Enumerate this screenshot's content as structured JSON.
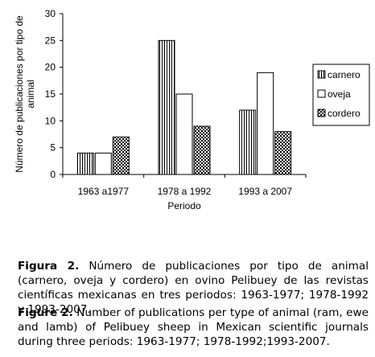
{
  "chart_data": {
    "type": "bar",
    "title": "",
    "xlabel": "Periodo",
    "ylabel": "Número de publicaciones por tipo de animal",
    "categories": [
      "1963 a1977",
      "1978 a 1992",
      "1993 a 2007"
    ],
    "series": [
      {
        "name": "carnero",
        "pattern": "vertical-stripes",
        "values": [
          4,
          25,
          12
        ]
      },
      {
        "name": "oveja",
        "pattern": "solid-white",
        "values": [
          4,
          15,
          19
        ]
      },
      {
        "name": "cordero",
        "pattern": "checkerboard",
        "values": [
          7,
          9,
          8
        ]
      }
    ],
    "ylim": [
      0,
      30
    ],
    "yticks": [
      0,
      5,
      10,
      15,
      20,
      25,
      30
    ],
    "grid": false,
    "legend_position": "right"
  },
  "captions": {
    "es_label": "Figura 2.",
    "es_text": "Número de publicaciones por tipo de animal (carnero, oveja y cordero) en ovino Pelibuey de las revistas científicas mexicanas en tres periodos: 1963-1977; 1978-1992 y 1993-2007.",
    "en_label": "Figure 2.",
    "en_text": "Number of publications per type of animal (ram, ewe and lamb) of Pelibuey sheep in Mexican scientific journals during three periods: 1963-1977; 1978-1992;1993-2007."
  }
}
